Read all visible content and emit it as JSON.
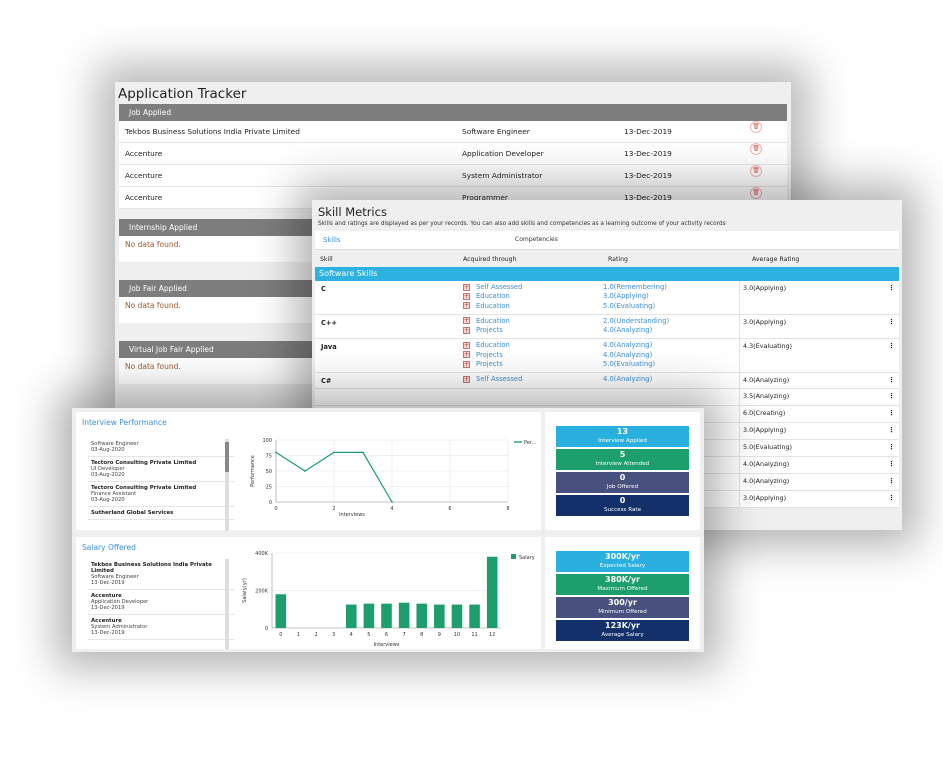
{
  "tracker": {
    "title": "Application Tracker",
    "job_applied": "Job Applied",
    "jobs": [
      {
        "company": "Tekbos Business Solutions India Private Limited",
        "role": "Software Engineer",
        "date": "13-Dec-2019"
      },
      {
        "company": "Accenture",
        "role": "Application Developer",
        "date": "13-Dec-2019"
      },
      {
        "company": "Accenture",
        "role": "System Administrator",
        "date": "13-Dec-2019"
      },
      {
        "company": "Accenture",
        "role": "Programmer",
        "date": "13-Dec-2019"
      }
    ],
    "internship_applied": "Internship Applied",
    "job_fair_applied": "Job Fair Applied",
    "virtual_job_fair_applied": "Virtual Job Fair Applied",
    "no_data": "No data found.",
    "delete_icon": "trash-icon"
  },
  "skills": {
    "title": "Skill Metrics",
    "subtitle": "Skills and ratings are displayed as per your records. You can also add skills and competencies as a learning outcome of your activity records",
    "tab_skills": "Skills",
    "tab_competencies": "Competencies",
    "col_skill": "Skill",
    "col_acquired": "Acquired through",
    "col_rating": "Rating",
    "col_avg": "Average Rating",
    "group": "Software Skills",
    "kebab": "⋮",
    "rows": [
      {
        "name": "C",
        "avg": "3.0(Applying)",
        "lines": [
          {
            "src": "Self Assessed",
            "rating": "1.0(Remembering)"
          },
          {
            "src": "Education",
            "rating": "3.0(Applying)"
          },
          {
            "src": "Education",
            "rating": "5.0(Evaluating)"
          }
        ]
      },
      {
        "name": "C++",
        "avg": "3.0(Applying)",
        "lines": [
          {
            "src": "Education",
            "rating": "2.0(Understanding)"
          },
          {
            "src": "Projects",
            "rating": "4.0(Analyzing)"
          }
        ]
      },
      {
        "name": "Java",
        "avg": "4.3(Evaluating)",
        "lines": [
          {
            "src": "Education",
            "rating": "4.0(Analyzing)"
          },
          {
            "src": "Projects",
            "rating": "4.0(Analyzing)"
          },
          {
            "src": "Projects",
            "rating": "5.0(Evaluating)"
          }
        ]
      },
      {
        "name": "C#",
        "avg": "4.0(Analyzing)",
        "lines": [
          {
            "src": "Self Assessed",
            "rating": "4.0(Analyzing)"
          }
        ]
      },
      {
        "name": "",
        "avg": "3.5(Analyzing)",
        "lines": []
      },
      {
        "name": "",
        "avg": "6.0(Creating)",
        "lines": []
      },
      {
        "name": "",
        "avg": "3.0(Applying)",
        "lines": []
      },
      {
        "name": "",
        "avg": "5.0(Evaluating)",
        "lines": []
      },
      {
        "name": "",
        "avg": "4.0(Analyzing)",
        "lines": []
      },
      {
        "name": "",
        "avg": "4.0(Analyzing)",
        "lines": []
      },
      {
        "name": "",
        "avg": "3.0(Applying)",
        "lines": []
      }
    ]
  },
  "interview": {
    "title": "Interview Performance",
    "list": [
      {
        "company": "",
        "role": "Software Engineer",
        "date": "03-Aug-2020"
      },
      {
        "company": "Tectoro Consulting Private Limited",
        "role": "UI Developer",
        "date": "03-Aug-2020"
      },
      {
        "company": "Tectoro Consulting Private Limited",
        "role": "Finance Assistant",
        "date": "03-Aug-2020"
      },
      {
        "company": "Sutherland Global Services",
        "role": "",
        "date": ""
      }
    ],
    "stats": [
      {
        "value": "13",
        "label": "Interview Applied",
        "color": "#2ab0df"
      },
      {
        "value": "5",
        "label": "Interview Attended",
        "color": "#1d9e6d"
      },
      {
        "value": "0",
        "label": "Job Offered",
        "color": "#48507e"
      },
      {
        "value": "0",
        "label": "Success Rate",
        "color": "#13306b"
      }
    ]
  },
  "salary": {
    "title": "Salary Offered",
    "list": [
      {
        "company": "Tekbos Business Solutions India Private Limited",
        "role": "Software Engineer",
        "date": "13-Dec-2019"
      },
      {
        "company": "Accenture",
        "role": "Application Developer",
        "date": "13-Dec-2019"
      },
      {
        "company": "Accenture",
        "role": "System Administrator",
        "date": "13-Dec-2019"
      }
    ],
    "stats": [
      {
        "value": "300K/yr",
        "label": "Expected Salary",
        "color": "#2ab0df"
      },
      {
        "value": "380K/yr",
        "label": "Maximum Offered",
        "color": "#1d9e6d"
      },
      {
        "value": "300/yr",
        "label": "Minimum Offered",
        "color": "#48507e"
      },
      {
        "value": "123K/yr",
        "label": "Average Salary",
        "color": "#13306b"
      }
    ]
  },
  "chart_data": [
    {
      "type": "line",
      "xlabel": "Interviews",
      "ylabel": "Performance",
      "legend": "Per...",
      "legend_position": "top-right",
      "x": [
        0,
        1,
        2,
        3,
        4
      ],
      "values": [
        80,
        50,
        80,
        80,
        0
      ],
      "xlim": [
        0,
        8
      ],
      "ylim": [
        0,
        100
      ],
      "xticks": [
        "0",
        "2",
        "4",
        "6",
        "8"
      ],
      "yticks": [
        "0",
        "25",
        "50",
        "75",
        "100"
      ],
      "color": "#1d9e6d"
    },
    {
      "type": "bar",
      "xlabel": "Interviews",
      "ylabel": "Salary(yr)",
      "legend": "Salary",
      "legend_position": "top-right",
      "categories": [
        "0",
        "1",
        "2",
        "3",
        "4",
        "5",
        "6",
        "7",
        "8",
        "9",
        "10",
        "11",
        "12"
      ],
      "values": [
        180000,
        0,
        0,
        0,
        125000,
        130000,
        130000,
        135000,
        130000,
        125000,
        125000,
        125000,
        380000
      ],
      "ylim": [
        0,
        400000
      ],
      "yticks": [
        "0",
        "200K",
        "400K"
      ],
      "color": "#1d9e6d"
    }
  ]
}
